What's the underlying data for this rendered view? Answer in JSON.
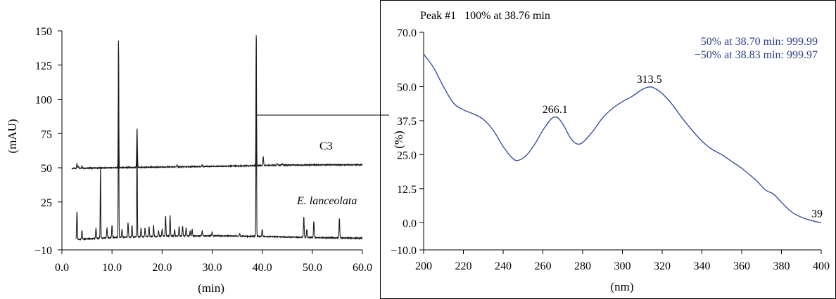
{
  "colors": {
    "axis": "#000000",
    "trace": "#1a1a1a",
    "spectrum": "#3a4f9e",
    "annotation_blue": "#2a3e8c"
  },
  "chart_data": [
    {
      "type": "line",
      "title": "",
      "xlabel": "(min)",
      "ylabel": "(mAU)",
      "xlim": [
        0,
        60
      ],
      "ylim": [
        -10,
        150
      ],
      "x_ticks": [
        "0.0",
        "10.0",
        "20.0",
        "30.0",
        "40.0",
        "50.0",
        "60.0"
      ],
      "x_tick_values": [
        0,
        10,
        20,
        30,
        40,
        50,
        60
      ],
      "y_ticks": [
        "150",
        "125",
        "100",
        "75",
        "50",
        "25",
        "−10"
      ],
      "y_tick_values": [
        150,
        125,
        100,
        75,
        50,
        25,
        -10
      ],
      "grid": false,
      "series": [
        {
          "name": "C3",
          "baseline": [
            [
              2.0,
              49.5
            ],
            [
              10.0,
              50.0
            ],
            [
              20.0,
              50.5
            ],
            [
              30.0,
              51.0
            ],
            [
              38.5,
              51.5
            ],
            [
              45.0,
              52.0
            ],
            [
              60.0,
              52.2
            ]
          ],
          "peaks": [
            [
              3.0,
              53
            ],
            [
              3.3,
              51
            ],
            [
              4.0,
              51.5
            ],
            [
              11.3,
              143
            ],
            [
              15.0,
              79
            ],
            [
              23.0,
              52
            ],
            [
              28.0,
              52
            ],
            [
              38.8,
              146
            ],
            [
              40.2,
              58
            ],
            [
              43.0,
              53
            ],
            [
              44.0,
              53
            ]
          ]
        },
        {
          "name": "E. lanceolata",
          "baseline": [
            [
              2.8,
              -2.5
            ],
            [
              10.0,
              -1.0
            ],
            [
              20.0,
              0.0
            ],
            [
              30.0,
              0.3
            ],
            [
              40.0,
              -0.2
            ],
            [
              50.0,
              -1.0
            ],
            [
              60.0,
              -1.5
            ]
          ],
          "peaks": [
            [
              3.0,
              18
            ],
            [
              4.0,
              4
            ],
            [
              6.8,
              6
            ],
            [
              7.7,
              50
            ],
            [
              9.0,
              6
            ],
            [
              10.0,
              8
            ],
            [
              11.3,
              143
            ],
            [
              12.0,
              5
            ],
            [
              13.2,
              10
            ],
            [
              14.0,
              8
            ],
            [
              15.0,
              79
            ],
            [
              15.8,
              6
            ],
            [
              16.6,
              6
            ],
            [
              17.4,
              7
            ],
            [
              18.3,
              8
            ],
            [
              19.3,
              4
            ],
            [
              20.0,
              5
            ],
            [
              20.7,
              15
            ],
            [
              21.6,
              15
            ],
            [
              22.5,
              5
            ],
            [
              23.4,
              7
            ],
            [
              24.1,
              7
            ],
            [
              24.8,
              6
            ],
            [
              25.6,
              4
            ],
            [
              26.0,
              5
            ],
            [
              28.0,
              4
            ],
            [
              30.0,
              3
            ],
            [
              35.5,
              2
            ],
            [
              38.8,
              147
            ],
            [
              40.0,
              5
            ],
            [
              48.3,
              14
            ],
            [
              48.9,
              5
            ],
            [
              50.3,
              11
            ],
            [
              55.4,
              13
            ]
          ]
        }
      ],
      "annotations": [
        {
          "text": "C3",
          "x": 51.5,
          "y": 61
        },
        {
          "text": "E. lanceolata",
          "x": 51.5,
          "y": 35
        }
      ]
    },
    {
      "type": "line",
      "title": "Peak #1   100% at 38.76 min",
      "xlabel": "(nm)",
      "ylabel": "(%)",
      "xlim": [
        200,
        400
      ],
      "ylim": [
        -10,
        70
      ],
      "x_ticks": [
        "200",
        "220",
        "240",
        "260",
        "280",
        "300",
        "320",
        "340",
        "360",
        "380",
        "400"
      ],
      "x_tick_values": [
        200,
        220,
        240,
        260,
        280,
        300,
        320,
        340,
        360,
        380,
        400
      ],
      "y_ticks": [
        "70.0",
        "50.0",
        "37.5",
        "25.0",
        "12.5",
        "0.0",
        "−10.0"
      ],
      "y_tick_values": [
        70,
        50,
        37.5,
        25,
        12.5,
        0,
        -10
      ],
      "grid": false,
      "series": [
        {
          "name": "",
          "x": [
            200,
            205,
            210,
            215,
            220,
            225,
            230,
            235,
            240,
            245,
            248,
            252,
            256,
            260,
            264,
            266,
            268,
            271,
            274,
            277,
            280,
            285,
            290,
            295,
            300,
            305,
            310,
            313.5,
            316,
            320,
            325,
            330,
            335,
            340,
            345,
            350,
            355,
            360,
            365,
            368,
            372,
            376,
            380,
            385,
            390,
            395,
            400
          ],
          "y": [
            62,
            57,
            50,
            44,
            41.5,
            40,
            38,
            34,
            28,
            23.5,
            23,
            25,
            29,
            34,
            38,
            38.8,
            38.3,
            35,
            31,
            29,
            29.5,
            33.5,
            38.5,
            42,
            44.5,
            46.5,
            49,
            49.9,
            49.5,
            47.5,
            43.5,
            38.5,
            34,
            30,
            27,
            25,
            22.5,
            20,
            17,
            15,
            12,
            10.5,
            7.5,
            4,
            2,
            0.8,
            0
          ]
        }
      ],
      "peak_labels": [
        {
          "text": "266.1",
          "x": 266.1,
          "y": 38.8
        },
        {
          "text": "313.5",
          "x": 313.5,
          "y": 49.9
        },
        {
          "text": "39",
          "x": 400,
          "y": 0
        }
      ],
      "info_lines": [
        "50% at 38.70 min: 999.99",
        "−50% at 38.83 min: 999.97"
      ]
    }
  ]
}
